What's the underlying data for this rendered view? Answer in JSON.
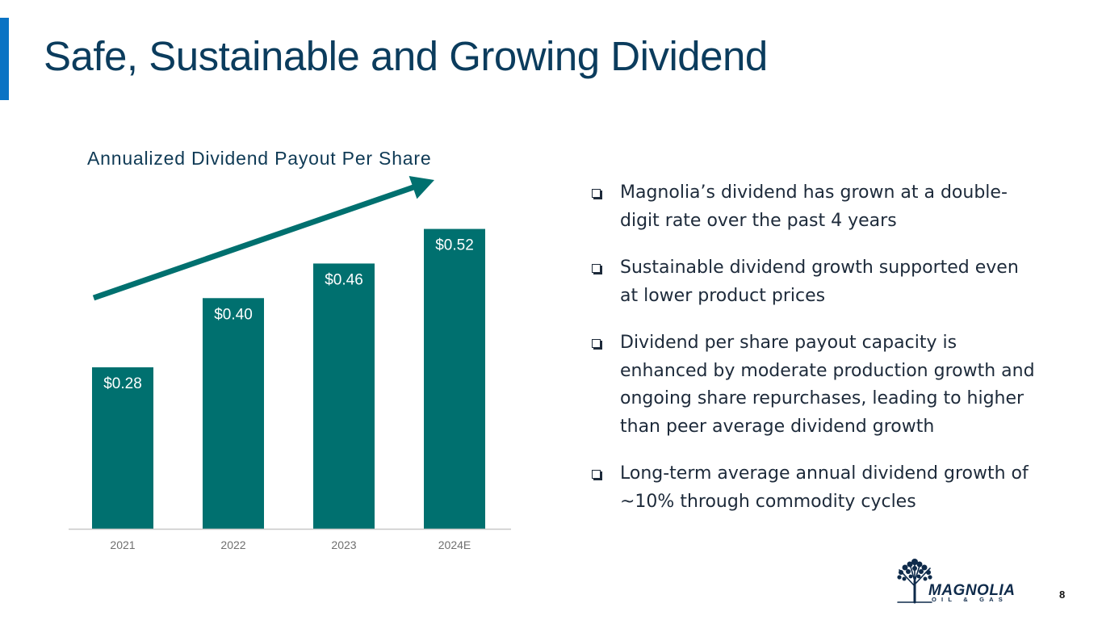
{
  "slide": {
    "title": "Safe, Sustainable and Growing Dividend",
    "page_number": "8"
  },
  "chart_data": {
    "type": "bar",
    "title": "Annualized Dividend Payout Per Share",
    "categories": [
      "2021",
      "2022",
      "2023",
      "2024E"
    ],
    "values": [
      0.28,
      0.4,
      0.46,
      0.52
    ],
    "value_labels": [
      "$0.28",
      "$0.40",
      "$0.46",
      "$0.52"
    ],
    "xlabel": "",
    "ylabel": "",
    "ylim": [
      0,
      0.56
    ],
    "grid": false,
    "annotation": "upward trend arrow",
    "bar_color": "#00706f",
    "arrow_color": "#00706f"
  },
  "bullets": [
    "Magnolia’s dividend has grown at a double-digit rate over the past 4 years",
    "Sustainable dividend growth supported even at lower product prices",
    "Dividend per share payout capacity is enhanced by moderate production growth and ongoing share repurchases, leading to higher than peer average dividend growth",
    "Long-term average annual dividend growth of ~10% through commodity cycles"
  ],
  "logo": {
    "icon": "tree-icon",
    "name": "MAGNOLIA",
    "subtitle": "OIL & GAS"
  },
  "colors": {
    "title": "#0b3c5d",
    "accent": "#0a73c4",
    "bar": "#00706f"
  }
}
